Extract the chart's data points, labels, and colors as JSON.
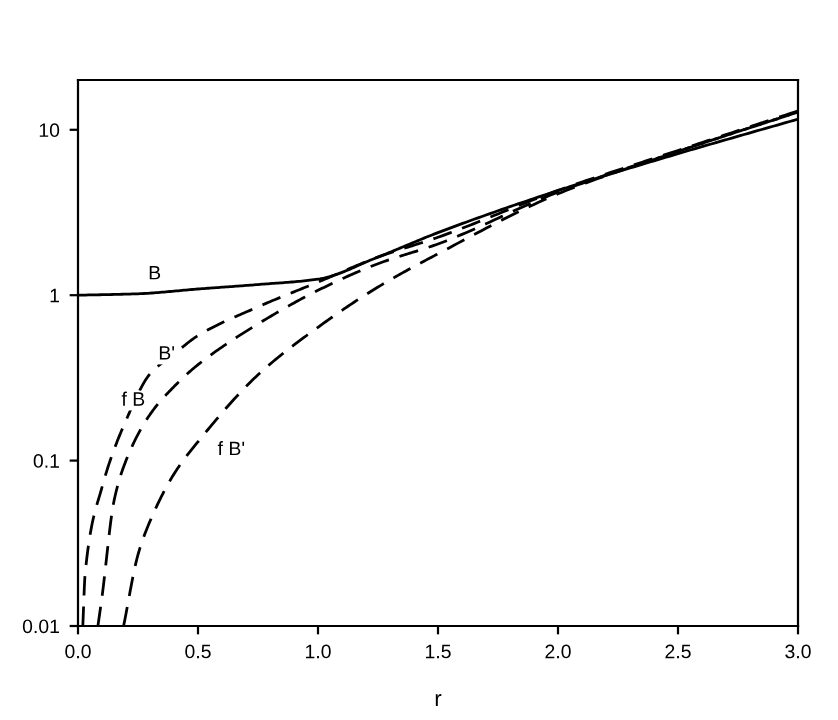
{
  "chart_data": {
    "type": "line",
    "xlabel": "r",
    "log": "y",
    "xlim": [
      0,
      3
    ],
    "ylim": [
      0.01,
      20
    ],
    "xticks": [
      {
        "value": 0,
        "label": "0.0"
      },
      {
        "value": 0.5,
        "label": "0.5"
      },
      {
        "value": 1,
        "label": "1.0"
      },
      {
        "value": 1.5,
        "label": "1.5"
      },
      {
        "value": 2,
        "label": "2.0"
      },
      {
        "value": 2.5,
        "label": "2.5"
      },
      {
        "value": 3,
        "label": "3.0"
      }
    ],
    "yticks": [
      0.01,
      0.1,
      1,
      10
    ],
    "grid": false,
    "marker": "none",
    "annotations": [
      {
        "text": "B",
        "x": 0.25,
        "y": 1.02
      },
      {
        "text": "B'",
        "x": 0.3,
        "y": 0.334
      },
      {
        "text": "f B",
        "x": 0.3,
        "y": 0.19
      },
      {
        "text": "f B'",
        "x": 0.5,
        "y": 0.13
      }
    ],
    "series": [
      {
        "color": "#000000",
        "line_style": "solid",
        "x": [
          0,
          0.25,
          0.5,
          0.75,
          1.0,
          1.25,
          1.5,
          2.0,
          2.5,
          3.0
        ],
        "values": [
          1.0,
          1.02,
          1.09,
          1.16,
          1.25,
          1.7,
          2.39,
          4.29,
          7.17,
          11.6
        ]
      },
      {
        "color": "#000000",
        "line_style": "dashed",
        "x": [
          0.02,
          0.03,
          0.1,
          0.2,
          0.3,
          0.4,
          0.5,
          0.75,
          1.0,
          1.25,
          1.5,
          2.0,
          2.5,
          3.0
        ],
        "values": [
          0.01,
          0.021,
          0.069,
          0.175,
          0.334,
          0.44,
          0.57,
          0.85,
          1.2,
          1.7,
          2.24,
          4.3,
          7.5,
          13.0
        ]
      },
      {
        "color": "#000000",
        "line_style": "dashed",
        "x": [
          0.083,
          0.1,
          0.15,
          0.2,
          0.3,
          0.4,
          0.5,
          0.75,
          1.0,
          1.25,
          1.5,
          2.0,
          2.5,
          3.0
        ],
        "values": [
          0.01,
          0.015,
          0.057,
          0.1,
          0.19,
          0.28,
          0.38,
          0.67,
          1.07,
          1.55,
          2.04,
          4.2,
          7.4,
          12.8
        ]
      },
      {
        "color": "#000000",
        "line_style": "dashed",
        "x": [
          0.19,
          0.25,
          0.3,
          0.4,
          0.5,
          0.75,
          1.0,
          1.25,
          1.5,
          2.0,
          2.5,
          3.0
        ],
        "values": [
          0.01,
          0.027,
          0.043,
          0.083,
          0.13,
          0.33,
          0.64,
          1.12,
          1.78,
          4.1,
          7.4,
          12.8
        ]
      }
    ]
  }
}
